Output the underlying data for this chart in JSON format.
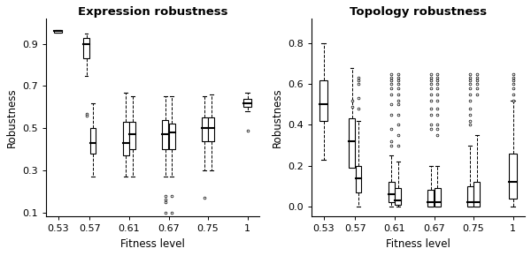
{
  "title_left": "Expression robustness",
  "title_right": "Topology robustness",
  "xlabel": "Fitness level",
  "ylabel": "Robustness",
  "categories": [
    "0.53",
    "0.57",
    "0.61",
    "0.67",
    "0.75",
    "1"
  ],
  "n_boxes_per_group": [
    1,
    2,
    2,
    2,
    2,
    1
  ],
  "expr_boxes": [
    {
      "med": 0.96,
      "q1": 0.955,
      "q3": 0.965,
      "whislo": 0.955,
      "whishi": 0.965,
      "fliers_low": [],
      "fliers_high": []
    },
    {
      "med": 0.9,
      "q1": 0.83,
      "q3": 0.93,
      "whislo": 0.75,
      "whishi": 0.95,
      "fliers_low": [
        0.57,
        0.56
      ],
      "fliers_high": []
    },
    {
      "med": 0.43,
      "q1": 0.38,
      "q3": 0.5,
      "whislo": 0.27,
      "whishi": 0.62,
      "fliers_low": [],
      "fliers_high": []
    },
    {
      "med": 0.43,
      "q1": 0.37,
      "q3": 0.53,
      "whislo": 0.27,
      "whishi": 0.67,
      "fliers_low": [],
      "fliers_high": []
    },
    {
      "med": 0.47,
      "q1": 0.4,
      "q3": 0.53,
      "whislo": 0.27,
      "whishi": 0.65,
      "fliers_low": [],
      "fliers_high": []
    },
    {
      "med": 0.47,
      "q1": 0.4,
      "q3": 0.54,
      "whislo": 0.27,
      "whishi": 0.65,
      "fliers_low": [
        0.18,
        0.16,
        0.15,
        0.1
      ],
      "fliers_high": []
    },
    {
      "med": 0.48,
      "q1": 0.4,
      "q3": 0.52,
      "whislo": 0.27,
      "whishi": 0.65,
      "fliers_low": [
        0.18,
        0.1
      ],
      "fliers_high": []
    },
    {
      "med": 0.5,
      "q1": 0.44,
      "q3": 0.55,
      "whislo": 0.3,
      "whishi": 0.65,
      "fliers_low": [
        0.17
      ],
      "fliers_high": []
    },
    {
      "med": 0.5,
      "q1": 0.44,
      "q3": 0.55,
      "whislo": 0.3,
      "whishi": 0.66,
      "fliers_low": [],
      "fliers_high": []
    },
    {
      "med": 0.62,
      "q1": 0.6,
      "q3": 0.64,
      "whislo": 0.58,
      "whishi": 0.67,
      "fliers_low": [
        0.49
      ],
      "fliers_high": []
    }
  ],
  "topo_boxes": [
    {
      "med": 0.5,
      "q1": 0.42,
      "q3": 0.62,
      "whislo": 0.23,
      "whishi": 0.8,
      "fliers_low": [],
      "fliers_high": []
    },
    {
      "med": 0.32,
      "q1": 0.19,
      "q3": 0.43,
      "whislo": 0.23,
      "whishi": 0.68,
      "fliers_low": [
        0.52,
        0.49
      ],
      "fliers_high": []
    },
    {
      "med": 0.14,
      "q1": 0.07,
      "q3": 0.2,
      "whislo": 0.0,
      "whishi": 0.42,
      "fliers_low": [
        0.63,
        0.62,
        0.6,
        0.53,
        0.48
      ],
      "fliers_high": []
    },
    {
      "med": 0.06,
      "q1": 0.02,
      "q3": 0.12,
      "whislo": 0.0,
      "whishi": 0.25,
      "fliers_low": [
        0.65,
        0.63,
        0.62,
        0.6,
        0.58,
        0.55,
        0.5,
        0.45,
        0.38,
        0.32,
        0.3
      ],
      "fliers_high": []
    },
    {
      "med": 0.03,
      "q1": 0.01,
      "q3": 0.09,
      "whislo": 0.0,
      "whishi": 0.22,
      "fliers_low": [
        0.65,
        0.63,
        0.62,
        0.6,
        0.58,
        0.55,
        0.52,
        0.5,
        0.45,
        0.4,
        0.35,
        0.3
      ],
      "fliers_high": []
    },
    {
      "med": 0.02,
      "q1": 0.0,
      "q3": 0.08,
      "whislo": 0.0,
      "whishi": 0.2,
      "fliers_low": [
        0.65,
        0.63,
        0.62,
        0.6,
        0.58,
        0.55,
        0.52,
        0.48,
        0.45,
        0.4,
        0.38
      ],
      "fliers_high": []
    },
    {
      "med": 0.02,
      "q1": 0.0,
      "q3": 0.09,
      "whislo": 0.0,
      "whishi": 0.2,
      "fliers_low": [
        0.65,
        0.63,
        0.62,
        0.6,
        0.58,
        0.55,
        0.52,
        0.48,
        0.45,
        0.4,
        0.38,
        0.35
      ],
      "fliers_high": []
    },
    {
      "med": 0.02,
      "q1": 0.0,
      "q3": 0.1,
      "whislo": 0.0,
      "whishi": 0.3,
      "fliers_low": [
        0.65,
        0.63,
        0.62,
        0.6,
        0.58,
        0.55,
        0.52,
        0.48,
        0.45,
        0.42,
        0.4
      ],
      "fliers_high": []
    },
    {
      "med": 0.02,
      "q1": 0.0,
      "q3": 0.12,
      "whislo": 0.0,
      "whishi": 0.35,
      "fliers_low": [
        0.65,
        0.63,
        0.62,
        0.6,
        0.58,
        0.55
      ],
      "fliers_high": []
    },
    {
      "med": 0.12,
      "q1": 0.04,
      "q3": 0.26,
      "whislo": 0.0,
      "whishi": 0.52,
      "fliers_low": [
        0.65,
        0.63,
        0.62,
        0.6,
        0.58,
        0.55,
        0.52
      ],
      "fliers_high": []
    }
  ],
  "expr_ylim": [
    0.08,
    1.02
  ],
  "expr_yticks": [
    0.1,
    0.3,
    0.5,
    0.7,
    0.9
  ],
  "topo_ylim": [
    -0.05,
    0.92
  ],
  "topo_yticks": [
    0.0,
    0.2,
    0.4,
    0.6,
    0.8
  ],
  "bg_color": "white"
}
